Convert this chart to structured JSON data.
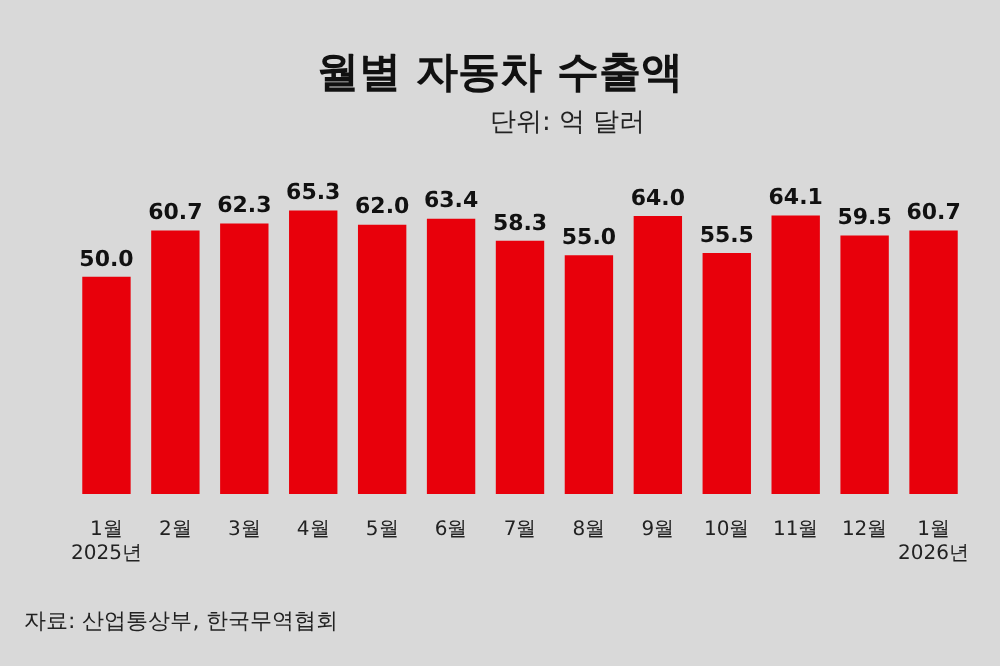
{
  "chart_data": {
    "type": "bar",
    "title": "월별 자동차 수출액",
    "subtitle": "단위: 억 달러",
    "categories": [
      "1월\n2025년",
      "2월",
      "3월",
      "4월",
      "5월",
      "6월",
      "7월",
      "8월",
      "9월",
      "10월",
      "11월",
      "12월",
      "1월\n2026년"
    ],
    "values": [
      50.0,
      60.7,
      62.3,
      65.3,
      62.0,
      63.4,
      58.3,
      55.0,
      64.0,
      55.5,
      64.1,
      59.5,
      60.7
    ],
    "value_labels": [
      "50.0",
      "60.7",
      "62.3",
      "65.3",
      "62.0",
      "63.4",
      "58.3",
      "55.0",
      "64.0",
      "55.5",
      "64.1",
      "59.5",
      "60.7"
    ],
    "color": "#e8000b",
    "tick_labels": "x",
    "grid": false,
    "legend": false,
    "annotations": [
      "자료: 산업통상부, 한국무역협회"
    ]
  }
}
